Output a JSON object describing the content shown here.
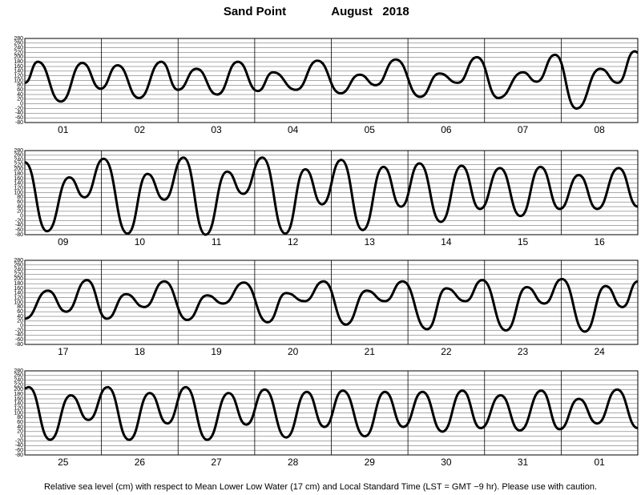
{
  "header": {
    "station": "Sand Point",
    "period": "August   2018"
  },
  "footnote": "Relative sea level (cm) with respect to Mean Lower Low Water (17 cm) and Local Standard Time (LST = GMT −9 hr). Please use with caution.",
  "chart_data": [
    {
      "type": "line",
      "color": "#000000",
      "grid": true,
      "xlim": [
        0,
        8
      ],
      "ylim": [
        -80,
        280
      ],
      "yticks": [
        280,
        260,
        240,
        220,
        200,
        180,
        160,
        140,
        120,
        100,
        80,
        60,
        40,
        20,
        0,
        -20,
        -40,
        -60,
        -80
      ],
      "categories": [
        "01",
        "02",
        "03",
        "04",
        "05",
        "06",
        "07",
        "08"
      ],
      "x": [
        0,
        0.17,
        0.47,
        0.75,
        0.99,
        1.21,
        1.49,
        1.78,
        2.0,
        2.24,
        2.51,
        2.78,
        3.04,
        3.24,
        3.54,
        3.82,
        4.12,
        4.37,
        4.58,
        4.84,
        5.16,
        5.41,
        5.65,
        5.9,
        6.18,
        6.5,
        6.68,
        6.92,
        7.2,
        7.51,
        7.74,
        7.96,
        8
      ],
      "values": [
        90,
        180,
        10,
        175,
        65,
        165,
        25,
        180,
        60,
        150,
        40,
        180,
        55,
        135,
        60,
        185,
        45,
        125,
        80,
        190,
        30,
        130,
        90,
        200,
        25,
        135,
        95,
        210,
        -20,
        150,
        90,
        225,
        220
      ]
    },
    {
      "type": "line",
      "color": "#000000",
      "grid": true,
      "xlim": [
        0,
        8
      ],
      "ylim": [
        -80,
        280
      ],
      "yticks": [
        280,
        260,
        240,
        220,
        200,
        180,
        160,
        140,
        120,
        100,
        80,
        60,
        40,
        20,
        0,
        -20,
        -40,
        -60,
        -80
      ],
      "categories": [
        "09",
        "10",
        "11",
        "12",
        "13",
        "14",
        "15",
        "16"
      ],
      "x": [
        0,
        0.29,
        0.58,
        0.78,
        1.03,
        1.34,
        1.6,
        1.82,
        2.07,
        2.36,
        2.64,
        2.85,
        3.1,
        3.4,
        3.66,
        3.88,
        4.13,
        4.41,
        4.68,
        4.91,
        5.15,
        5.43,
        5.7,
        5.94,
        6.2,
        6.47,
        6.73,
        6.98,
        7.23,
        7.47,
        7.75,
        8
      ],
      "values": [
        230,
        -65,
        165,
        80,
        245,
        -75,
        180,
        70,
        250,
        -80,
        190,
        95,
        250,
        -75,
        200,
        50,
        240,
        -60,
        210,
        40,
        225,
        -25,
        215,
        30,
        205,
        0,
        210,
        30,
        175,
        30,
        205,
        40
      ]
    },
    {
      "type": "line",
      "color": "#000000",
      "grid": true,
      "xlim": [
        0,
        8
      ],
      "ylim": [
        -80,
        280
      ],
      "yticks": [
        280,
        260,
        240,
        220,
        200,
        180,
        160,
        140,
        120,
        100,
        80,
        60,
        40,
        20,
        0,
        -20,
        -40,
        -60,
        -80
      ],
      "categories": [
        "17",
        "18",
        "19",
        "20",
        "21",
        "22",
        "23",
        "24"
      ],
      "x": [
        0,
        0.3,
        0.54,
        0.81,
        1.07,
        1.32,
        1.56,
        1.82,
        2.12,
        2.38,
        2.59,
        2.86,
        3.17,
        3.41,
        3.65,
        3.9,
        4.19,
        4.46,
        4.7,
        4.93,
        5.25,
        5.5,
        5.75,
        5.97,
        6.28,
        6.55,
        6.78,
        7.01,
        7.31,
        7.58,
        7.8,
        8
      ],
      "values": [
        30,
        150,
        60,
        195,
        30,
        135,
        80,
        190,
        25,
        130,
        95,
        185,
        15,
        140,
        105,
        190,
        5,
        150,
        105,
        190,
        -15,
        160,
        105,
        195,
        -20,
        165,
        95,
        200,
        -25,
        170,
        80,
        190
      ]
    },
    {
      "type": "line",
      "color": "#000000",
      "grid": true,
      "xlim": [
        0,
        8
      ],
      "ylim": [
        -80,
        280
      ],
      "yticks": [
        280,
        260,
        240,
        220,
        200,
        180,
        160,
        140,
        120,
        100,
        80,
        60,
        40,
        20,
        0,
        -20,
        -40,
        -60,
        -80
      ],
      "categories": [
        "25",
        "26",
        "27",
        "28",
        "29",
        "30",
        "31",
        "01"
      ],
      "x": [
        0,
        0.05,
        0.33,
        0.6,
        0.83,
        1.08,
        1.36,
        1.63,
        1.86,
        2.1,
        2.38,
        2.66,
        2.89,
        3.13,
        3.41,
        3.68,
        3.91,
        4.15,
        4.44,
        4.7,
        4.94,
        5.19,
        5.45,
        5.71,
        5.95,
        6.21,
        6.46,
        6.74,
        6.98,
        7.23,
        7.47,
        7.73,
        8
      ],
      "values": [
        205,
        210,
        -15,
        175,
        70,
        210,
        -15,
        185,
        55,
        210,
        -15,
        185,
        50,
        200,
        -5,
        190,
        40,
        195,
        0,
        190,
        40,
        190,
        20,
        195,
        35,
        175,
        25,
        195,
        30,
        160,
        55,
        200,
        35
      ]
    }
  ]
}
